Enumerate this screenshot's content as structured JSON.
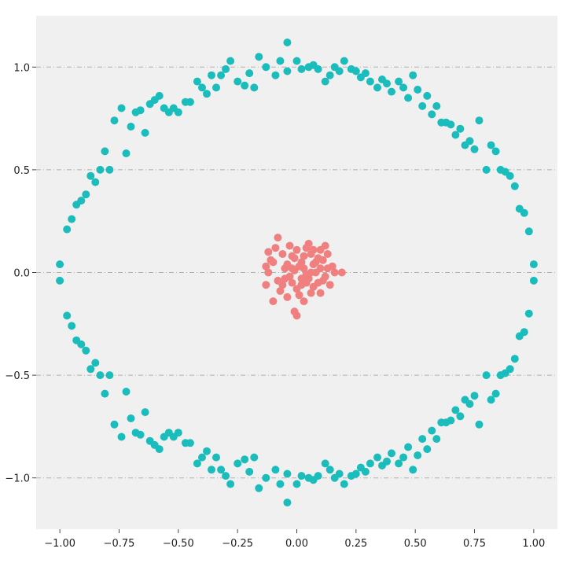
{
  "chart_data": {
    "type": "scatter",
    "title": "",
    "xlabel": "",
    "ylabel": "",
    "xlim": [
      -1.1,
      1.1
    ],
    "ylim": [
      -1.25,
      1.25
    ],
    "x_ticks": [
      -1.0,
      -0.75,
      -0.5,
      -0.25,
      0.0,
      0.25,
      0.5,
      0.75,
      1.0
    ],
    "x_tick_labels": [
      "−1.00",
      "−0.75",
      "−0.50",
      "−0.25",
      "0.00",
      "0.25",
      "0.50",
      "0.75",
      "1.00"
    ],
    "y_ticks": [
      1.0,
      0.5,
      0.0,
      -0.5,
      -1.0
    ],
    "y_tick_labels": [
      "1.0",
      "0.5",
      "0.0",
      "−0.5",
      "−1.0"
    ],
    "grid": "horizontal dash-dot",
    "background_color": "#f0f0f0",
    "grid_color": "#b0b0b0",
    "series": [
      {
        "color": "#1bbcbc",
        "points": [
          [
            -0.04,
            1.12
          ],
          [
            -0.07,
            1.03
          ],
          [
            -0.13,
            1.0
          ],
          [
            -0.09,
            0.96
          ],
          [
            -0.04,
            0.98
          ],
          [
            0.0,
            1.03
          ],
          [
            0.02,
            0.99
          ],
          [
            0.05,
            1.0
          ],
          [
            0.07,
            1.01
          ],
          [
            0.09,
            0.99
          ],
          [
            0.12,
            0.93
          ],
          [
            0.14,
            0.96
          ],
          [
            0.16,
            1.0
          ],
          [
            0.18,
            0.98
          ],
          [
            0.2,
            1.03
          ],
          [
            0.23,
            0.99
          ],
          [
            0.25,
            0.98
          ],
          [
            0.27,
            0.95
          ],
          [
            0.29,
            0.97
          ],
          [
            0.31,
            0.93
          ],
          [
            0.34,
            0.9
          ],
          [
            0.36,
            0.94
          ],
          [
            0.38,
            0.92
          ],
          [
            0.4,
            0.88
          ],
          [
            0.43,
            0.93
          ],
          [
            0.45,
            0.9
          ],
          [
            0.47,
            0.85
          ],
          [
            0.49,
            0.96
          ],
          [
            0.51,
            0.89
          ],
          [
            0.53,
            0.81
          ],
          [
            0.55,
            0.86
          ],
          [
            0.57,
            0.77
          ],
          [
            0.59,
            0.81
          ],
          [
            0.61,
            0.73
          ],
          [
            0.63,
            0.73
          ],
          [
            0.65,
            0.72
          ],
          [
            0.67,
            0.67
          ],
          [
            0.69,
            0.7
          ],
          [
            0.71,
            0.62
          ],
          [
            0.73,
            0.64
          ],
          [
            0.75,
            0.6
          ],
          [
            0.77,
            0.74
          ],
          [
            0.8,
            0.5
          ],
          [
            0.82,
            0.62
          ],
          [
            0.84,
            0.59
          ],
          [
            0.86,
            0.5
          ],
          [
            0.88,
            0.49
          ],
          [
            0.9,
            0.47
          ],
          [
            0.92,
            0.42
          ],
          [
            0.94,
            0.31
          ],
          [
            0.96,
            0.29
          ],
          [
            0.98,
            0.2
          ],
          [
            1.0,
            0.04
          ],
          [
            1.0,
            -0.04
          ],
          [
            0.98,
            -0.2
          ],
          [
            0.96,
            -0.29
          ],
          [
            0.94,
            -0.31
          ],
          [
            0.92,
            -0.42
          ],
          [
            0.9,
            -0.47
          ],
          [
            0.88,
            -0.49
          ],
          [
            0.86,
            -0.5
          ],
          [
            0.84,
            -0.59
          ],
          [
            0.82,
            -0.62
          ],
          [
            0.8,
            -0.5
          ],
          [
            0.77,
            -0.74
          ],
          [
            0.75,
            -0.6
          ],
          [
            0.73,
            -0.64
          ],
          [
            0.71,
            -0.62
          ],
          [
            0.69,
            -0.7
          ],
          [
            0.67,
            -0.67
          ],
          [
            0.65,
            -0.72
          ],
          [
            0.63,
            -0.73
          ],
          [
            0.61,
            -0.73
          ],
          [
            0.59,
            -0.81
          ],
          [
            0.57,
            -0.77
          ],
          [
            0.55,
            -0.86
          ],
          [
            0.53,
            -0.81
          ],
          [
            0.51,
            -0.89
          ],
          [
            0.49,
            -0.96
          ],
          [
            0.47,
            -0.85
          ],
          [
            0.45,
            -0.9
          ],
          [
            0.43,
            -0.93
          ],
          [
            0.4,
            -0.88
          ],
          [
            0.38,
            -0.92
          ],
          [
            0.36,
            -0.94
          ],
          [
            0.34,
            -0.9
          ],
          [
            0.31,
            -0.93
          ],
          [
            0.29,
            -0.97
          ],
          [
            0.27,
            -0.95
          ],
          [
            0.25,
            -0.98
          ],
          [
            0.23,
            -0.99
          ],
          [
            0.2,
            -1.03
          ],
          [
            0.18,
            -0.98
          ],
          [
            0.16,
            -1.0
          ],
          [
            0.14,
            -0.96
          ],
          [
            0.12,
            -0.93
          ],
          [
            0.09,
            -0.99
          ],
          [
            0.07,
            -1.01
          ],
          [
            0.05,
            -1.0
          ],
          [
            0.02,
            -0.99
          ],
          [
            0.0,
            -1.03
          ],
          [
            -0.04,
            -0.98
          ],
          [
            -0.04,
            -1.12
          ],
          [
            -0.07,
            -1.03
          ],
          [
            -0.09,
            -0.96
          ],
          [
            -0.13,
            -1.0
          ],
          [
            -0.16,
            -1.05
          ],
          [
            -0.18,
            -0.9
          ],
          [
            -0.2,
            -0.97
          ],
          [
            -0.22,
            -0.91
          ],
          [
            -0.25,
            -0.93
          ],
          [
            -0.28,
            -1.03
          ],
          [
            -0.3,
            -0.99
          ],
          [
            -0.32,
            -0.96
          ],
          [
            -0.34,
            -0.9
          ],
          [
            -0.36,
            -0.96
          ],
          [
            -0.38,
            -0.87
          ],
          [
            -0.4,
            -0.9
          ],
          [
            -0.42,
            -0.93
          ],
          [
            -0.45,
            -0.83
          ],
          [
            -0.47,
            -0.83
          ],
          [
            -0.5,
            -0.78
          ],
          [
            -0.52,
            -0.8
          ],
          [
            -0.54,
            -0.78
          ],
          [
            -0.56,
            -0.8
          ],
          [
            -0.58,
            -0.86
          ],
          [
            -0.6,
            -0.84
          ],
          [
            -0.62,
            -0.82
          ],
          [
            -0.64,
            -0.68
          ],
          [
            -0.66,
            -0.79
          ],
          [
            -0.68,
            -0.78
          ],
          [
            -0.7,
            -0.71
          ],
          [
            -0.72,
            -0.58
          ],
          [
            -0.74,
            -0.8
          ],
          [
            -0.77,
            -0.74
          ],
          [
            -0.79,
            -0.5
          ],
          [
            -0.81,
            -0.59
          ],
          [
            -0.83,
            -0.5
          ],
          [
            -0.85,
            -0.44
          ],
          [
            -0.87,
            -0.47
          ],
          [
            -0.89,
            -0.38
          ],
          [
            -0.91,
            -0.35
          ],
          [
            -0.93,
            -0.33
          ],
          [
            -0.95,
            -0.26
          ],
          [
            -0.97,
            -0.21
          ],
          [
            -1.0,
            -0.04
          ],
          [
            -1.0,
            0.04
          ],
          [
            -0.97,
            0.21
          ],
          [
            -0.95,
            0.26
          ],
          [
            -0.93,
            0.33
          ],
          [
            -0.91,
            0.35
          ],
          [
            -0.89,
            0.38
          ],
          [
            -0.87,
            0.47
          ],
          [
            -0.85,
            0.44
          ],
          [
            -0.83,
            0.5
          ],
          [
            -0.81,
            0.59
          ],
          [
            -0.79,
            0.5
          ],
          [
            -0.77,
            0.74
          ],
          [
            -0.74,
            0.8
          ],
          [
            -0.72,
            0.58
          ],
          [
            -0.7,
            0.71
          ],
          [
            -0.68,
            0.78
          ],
          [
            -0.66,
            0.79
          ],
          [
            -0.64,
            0.68
          ],
          [
            -0.62,
            0.82
          ],
          [
            -0.6,
            0.84
          ],
          [
            -0.58,
            0.86
          ],
          [
            -0.56,
            0.8
          ],
          [
            -0.54,
            0.78
          ],
          [
            -0.52,
            0.8
          ],
          [
            -0.5,
            0.78
          ],
          [
            -0.47,
            0.83
          ],
          [
            -0.45,
            0.83
          ],
          [
            -0.42,
            0.93
          ],
          [
            -0.4,
            0.9
          ],
          [
            -0.38,
            0.87
          ],
          [
            -0.36,
            0.96
          ],
          [
            -0.34,
            0.9
          ],
          [
            -0.32,
            0.96
          ],
          [
            -0.3,
            0.99
          ],
          [
            -0.28,
            1.03
          ],
          [
            -0.25,
            0.93
          ],
          [
            -0.22,
            0.91
          ],
          [
            -0.2,
            0.97
          ],
          [
            -0.18,
            0.9
          ],
          [
            -0.16,
            1.05
          ]
        ]
      },
      {
        "color": "#f08080",
        "points": [
          [
            -0.08,
            0.17
          ],
          [
            -0.12,
            0.1
          ],
          [
            -0.11,
            0.06
          ],
          [
            -0.13,
            0.03
          ],
          [
            -0.12,
            0.0
          ],
          [
            -0.13,
            -0.06
          ],
          [
            -0.1,
            -0.14
          ],
          [
            -0.07,
            -0.09
          ],
          [
            -0.05,
            -0.03
          ],
          [
            -0.04,
            0.04
          ],
          [
            -0.06,
            0.09
          ],
          [
            -0.09,
            0.12
          ],
          [
            -0.03,
            0.13
          ],
          [
            -0.02,
            0.08
          ],
          [
            -0.01,
            0.01
          ],
          [
            -0.02,
            -0.05
          ],
          [
            -0.04,
            -0.12
          ],
          [
            -0.01,
            -0.19
          ],
          [
            0.0,
            -0.21
          ],
          [
            0.01,
            -0.11
          ],
          [
            0.02,
            -0.06
          ],
          [
            0.01,
            0.03
          ],
          [
            0.03,
            0.08
          ],
          [
            0.04,
            0.12
          ],
          [
            0.05,
            0.14
          ],
          [
            0.06,
            0.09
          ],
          [
            0.07,
            0.04
          ],
          [
            0.08,
            0.0
          ],
          [
            0.09,
            -0.05
          ],
          [
            0.06,
            -0.1
          ],
          [
            0.03,
            -0.14
          ],
          [
            0.05,
            -0.03
          ],
          [
            0.09,
            0.07
          ],
          [
            0.1,
            0.11
          ],
          [
            0.12,
            0.13
          ],
          [
            0.11,
            0.06
          ],
          [
            0.13,
            0.02
          ],
          [
            0.12,
            -0.02
          ],
          [
            0.14,
            -0.06
          ],
          [
            0.1,
            -0.1
          ],
          [
            0.07,
            -0.07
          ],
          [
            0.04,
            -0.01
          ],
          [
            0.02,
            0.05
          ],
          [
            -0.01,
            0.07
          ],
          [
            0.0,
            0.11
          ],
          [
            0.03,
            0.02
          ],
          [
            0.06,
            0.0
          ],
          [
            0.08,
            0.05
          ],
          [
            0.1,
            0.02
          ],
          [
            0.13,
            0.09
          ],
          [
            0.15,
            0.03
          ],
          [
            0.16,
            0.0
          ],
          [
            0.19,
            0.0
          ],
          [
            0.04,
            -0.05
          ],
          [
            0.02,
            -0.03
          ],
          [
            -0.03,
            -0.02
          ],
          [
            -0.05,
            0.02
          ],
          [
            -0.08,
            -0.04
          ],
          [
            -0.1,
            0.05
          ],
          [
            -0.06,
            -0.06
          ],
          [
            0.0,
            -0.08
          ],
          [
            0.07,
            0.11
          ],
          [
            0.11,
            -0.04
          ],
          [
            -0.02,
            0.02
          ]
        ]
      }
    ]
  }
}
